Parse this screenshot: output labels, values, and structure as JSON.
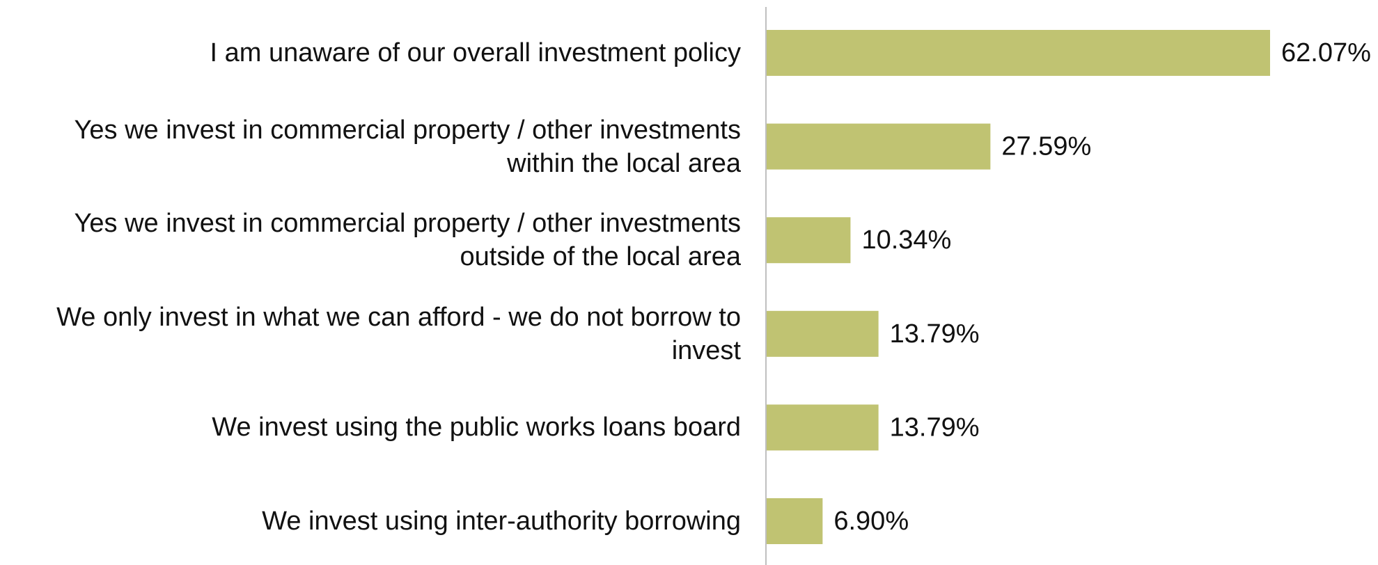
{
  "chart_data": {
    "type": "bar",
    "orientation": "horizontal",
    "title": "",
    "xlabel": "",
    "ylabel": "",
    "categories": [
      "I am unaware of our overall investment policy",
      "Yes we invest in commercial property / other investments within the local area",
      "Yes we invest in commercial property / other investments outside of the local area",
      "We only invest in what we can afford - we do not borrow to invest",
      "We invest using the public works loans board",
      "We invest using inter-authority borrowing"
    ],
    "values": [
      62.07,
      27.59,
      10.34,
      13.79,
      13.79,
      6.9
    ],
    "value_labels": [
      "62.07%",
      "27.59%",
      "10.34%",
      "13.79%",
      "13.79%",
      "6.90%"
    ],
    "xlim": [
      0,
      62.07
    ],
    "grid": false,
    "legend": "none",
    "bar_color": "#c0c372",
    "axis_color": "#bfbfbf"
  }
}
